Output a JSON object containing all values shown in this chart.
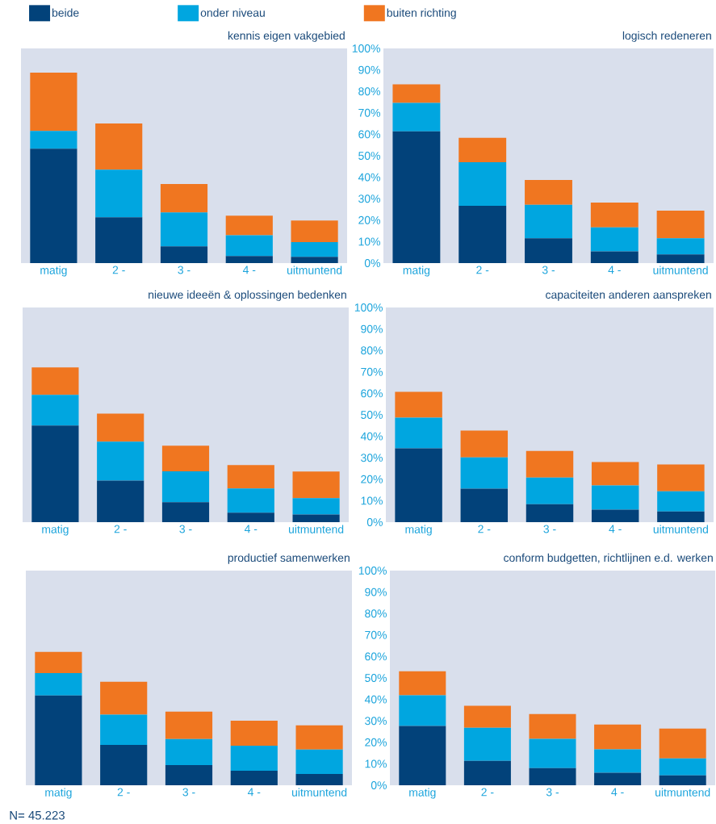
{
  "chart_data": [
    {
      "type": "bar",
      "stacked": true,
      "title": "kennis eigen vakgebied",
      "categories": [
        "matig",
        "2 -",
        "3 -",
        "4 -",
        "uitmuntend"
      ],
      "ylim": [
        0,
        100
      ],
      "tick_labels": "x",
      "legend": "top",
      "series": [
        {
          "name": "beide",
          "color": "#02427a",
          "values": [
            53.3,
            21.3,
            7.8,
            3.3,
            2.9
          ]
        },
        {
          "name": "onder niveau",
          "color": "#00a6e0",
          "values": [
            8.3,
            22.2,
            15.8,
            9.7,
            6.9
          ]
        },
        {
          "name": "buiten richting",
          "color": "#f07620",
          "values": [
            27.1,
            21.5,
            13.2,
            9.1,
            10.0
          ]
        }
      ]
    },
    {
      "type": "bar",
      "stacked": true,
      "title": "logisch redeneren",
      "categories": [
        "matig",
        "2 -",
        "3 -",
        "4 -",
        "uitmuntend"
      ],
      "ylim": [
        0,
        100
      ],
      "yticks": [
        {
          "value": 0,
          "label": "0%"
        },
        {
          "value": 10,
          "label": "10%"
        },
        {
          "value": 20,
          "label": "20%"
        },
        {
          "value": 30,
          "label": "30%"
        },
        {
          "value": 40,
          "label": "40%"
        },
        {
          "value": 50,
          "label": "50%"
        },
        {
          "value": 60,
          "label": "60%"
        },
        {
          "value": 70,
          "label": "70%"
        },
        {
          "value": 80,
          "label": "80%"
        },
        {
          "value": 90,
          "label": "90%"
        },
        {
          "value": 100,
          "label": "100%"
        }
      ],
      "series": [
        {
          "color": "#02427a",
          "values": [
            61.4,
            26.7,
            11.6,
            5.5,
            4.0
          ]
        },
        {
          "color": "#00a6e0",
          "values": [
            13.2,
            20.3,
            15.6,
            11.1,
            7.6
          ]
        },
        {
          "color": "#f07620",
          "values": [
            8.7,
            11.4,
            11.5,
            11.6,
            12.8
          ]
        }
      ]
    },
    {
      "type": "bar",
      "stacked": true,
      "title": "nieuwe ideeën & oplossingen bedenken",
      "categories": [
        "matig",
        "2 -",
        "3 -",
        "4 -",
        "uitmuntend"
      ],
      "ylim": [
        0,
        100
      ],
      "tick_labels": "x",
      "series": [
        {
          "color": "#02427a",
          "values": [
            45.0,
            19.4,
            9.3,
            4.4,
            3.6
          ]
        },
        {
          "color": "#00a6e0",
          "values": [
            14.3,
            18.1,
            14.4,
            11.3,
            7.6
          ]
        },
        {
          "color": "#f07620",
          "values": [
            12.8,
            13.1,
            11.9,
            10.9,
            12.4
          ]
        }
      ]
    },
    {
      "type": "bar",
      "stacked": true,
      "title": "capaciteiten anderen aanspreken",
      "categories": [
        "matig",
        "2 -",
        "3 -",
        "4 -",
        "uitmuntend"
      ],
      "ylim": [
        0,
        100
      ],
      "yticks": [
        {
          "value": 0,
          "label": "0%"
        },
        {
          "value": 10,
          "label": "10%"
        },
        {
          "value": 20,
          "label": "20%"
        },
        {
          "value": 30,
          "label": "30%"
        },
        {
          "value": 40,
          "label": "40%"
        },
        {
          "value": 50,
          "label": "50%"
        },
        {
          "value": 60,
          "label": "60%"
        },
        {
          "value": 70,
          "label": "70%"
        },
        {
          "value": 80,
          "label": "80%"
        },
        {
          "value": 90,
          "label": "90%"
        },
        {
          "value": 100,
          "label": "100%"
        }
      ],
      "series": [
        {
          "color": "#02427a",
          "values": [
            34.4,
            15.6,
            8.4,
            5.8,
            5.0
          ]
        },
        {
          "color": "#00a6e0",
          "values": [
            14.3,
            14.6,
            12.4,
            11.3,
            9.4
          ]
        },
        {
          "color": "#f07620",
          "values": [
            12.0,
            12.5,
            12.4,
            10.9,
            12.5
          ]
        }
      ]
    },
    {
      "type": "bar",
      "stacked": true,
      "title": "productief samenwerken",
      "categories": [
        "matig",
        "2 -",
        "3 -",
        "4 -",
        "uitmuntend"
      ],
      "ylim": [
        0,
        100
      ],
      "tick_labels": "x",
      "annotations": [
        "N= 45.223"
      ],
      "series": [
        {
          "color": "#02427a",
          "values": [
            41.8,
            18.8,
            9.4,
            6.8,
            5.3
          ]
        },
        {
          "color": "#00a6e0",
          "values": [
            10.5,
            14.1,
            12.1,
            11.6,
            11.3
          ]
        },
        {
          "color": "#f07620",
          "values": [
            9.8,
            15.3,
            12.8,
            11.7,
            11.3
          ]
        }
      ]
    },
    {
      "type": "bar",
      "stacked": true,
      "title": "conform budgetten, richtlijnen e.d. werken",
      "categories": [
        "matig",
        "2 -",
        "3 -",
        "4 -",
        "uitmuntend"
      ],
      "ylim": [
        0,
        100
      ],
      "yticks": [
        {
          "value": 0,
          "label": "0%"
        },
        {
          "value": 10,
          "label": "10%"
        },
        {
          "value": 20,
          "label": "20%"
        },
        {
          "value": 30,
          "label": "30%"
        },
        {
          "value": 40,
          "label": "40%"
        },
        {
          "value": 50,
          "label": "50%"
        },
        {
          "value": 60,
          "label": "60%"
        },
        {
          "value": 70,
          "label": "70%"
        },
        {
          "value": 80,
          "label": "80%"
        },
        {
          "value": 90,
          "label": "90%"
        },
        {
          "value": 100,
          "label": "100%"
        }
      ],
      "series": [
        {
          "color": "#02427a",
          "values": [
            27.6,
            11.4,
            8.0,
            5.8,
            4.6
          ]
        },
        {
          "color": "#00a6e0",
          "values": [
            14.3,
            15.4,
            13.6,
            10.9,
            7.9
          ]
        },
        {
          "color": "#f07620",
          "values": [
            11.2,
            10.2,
            11.6,
            11.6,
            13.9
          ]
        }
      ]
    }
  ]
}
